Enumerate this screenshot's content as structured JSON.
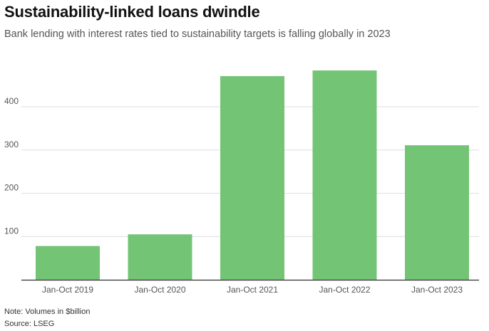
{
  "header": {
    "title": "Sustainability-linked loans dwindle",
    "subtitle": "Bank lending with interest rates tied to sustainability targets is falling globally in 2023"
  },
  "chart_data": {
    "type": "bar",
    "title": "Sustainability-linked loans dwindle",
    "subtitle": "Bank lending with interest rates tied to sustainability targets is falling globally in 2023",
    "categories": [
      "Jan-Oct 2019",
      "Jan-Oct 2020",
      "Jan-Oct 2021",
      "Jan-Oct 2022",
      "Jan-Oct 2023"
    ],
    "values": [
      78,
      105,
      471,
      484,
      311
    ],
    "xlabel": "",
    "ylabel": "",
    "ylim": [
      0,
      520
    ],
    "yticks": [
      100,
      200,
      300,
      400
    ],
    "grid": true,
    "bar_color": "#74c476",
    "grid_color": "#dddddd",
    "axis_color": "#333333"
  },
  "footer": {
    "note": "Note: Volumes in $billion",
    "source": "Source: LSEG"
  }
}
